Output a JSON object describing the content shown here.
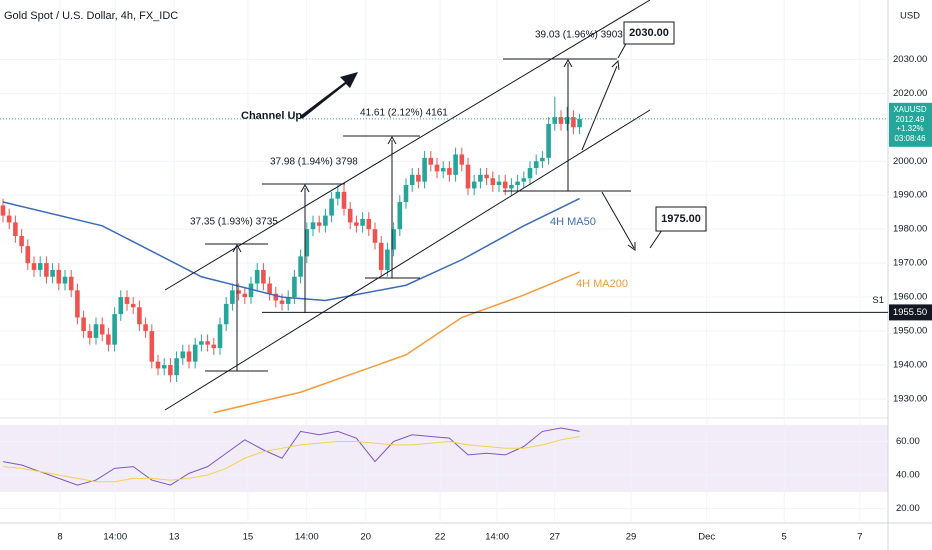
{
  "chart_data": {
    "type": "candlestick",
    "title": "Gold Spot / U.S. Dollar, 4h, FX_IDC",
    "currency": "USD",
    "colors": {
      "up": "#26a69a",
      "down": "#ef5350"
    },
    "ylim": [
      1925,
      2046
    ],
    "yticks": [
      {
        "value": 2030,
        "label": "2030.00"
      },
      {
        "value": 2020,
        "label": "2020.00"
      },
      {
        "value": 2000,
        "label": "2000.00"
      },
      {
        "value": 1990,
        "label": "1990.00"
      },
      {
        "value": 1980,
        "label": "1980.00"
      },
      {
        "value": 1970,
        "label": "1970.00"
      },
      {
        "value": 1960,
        "label": "1960.00"
      },
      {
        "value": 1950,
        "label": "1950.00"
      },
      {
        "value": 1940,
        "label": "1940.00"
      },
      {
        "value": 1930,
        "label": "1930.00"
      }
    ],
    "xticks": [
      {
        "value": 9.2,
        "label": "8"
      },
      {
        "value": 18.1,
        "label": "14:00"
      },
      {
        "value": 27.6,
        "label": "13"
      },
      {
        "value": 39.5,
        "label": "15"
      },
      {
        "value": 49,
        "label": "14:00"
      },
      {
        "value": 58.5,
        "label": "20"
      },
      {
        "value": 70.5,
        "label": "22"
      },
      {
        "value": 79.7,
        "label": "14:00"
      },
      {
        "value": 89,
        "label": "27"
      },
      {
        "value": 101.3,
        "label": "29"
      },
      {
        "value": 113.5,
        "label": "Dec"
      },
      {
        "value": 126,
        "label": "5"
      },
      {
        "value": 138.2,
        "label": "7"
      }
    ],
    "open": [
      1987,
      1984,
      1982,
      1978,
      1975,
      1970,
      1968,
      1970,
      1966,
      1968,
      1964,
      1966,
      1962,
      1954,
      1950,
      1948,
      1952,
      1949,
      1946,
      1955,
      1960,
      1958,
      1957,
      1952,
      1950,
      1941,
      1939,
      1940,
      1937,
      1942,
      1944,
      1941,
      1946,
      1947,
      1946,
      1945,
      1952,
      1958,
      1962,
      1961,
      1960,
      1964,
      1968,
      1964,
      1961,
      1959,
      1958,
      1960,
      1966,
      1972,
      1980,
      1982,
      1981,
      1984,
      1989,
      1991,
      1986,
      1982,
      1981,
      1983,
      1980,
      1976,
      1968,
      1974,
      1980,
      1988,
      1993,
      1996,
      1994,
      2001,
      1999,
      1997,
      1998,
      1996,
      2002,
      1999,
      1992,
      1994,
      1996,
      1995,
      1993,
      1994,
      1992,
      1993,
      1994,
      1995,
      1998,
      2000,
      2001,
      2011,
      2013,
      2011,
      2013,
      2010
    ],
    "high": [
      1989,
      1986,
      1984,
      1980,
      1977,
      1972,
      1972,
      1972,
      1970,
      1970,
      1968,
      1968,
      1964,
      1956,
      1952,
      1954,
      1954,
      1951,
      1957,
      1962,
      1962,
      1960,
      1959,
      1954,
      1952,
      1943,
      1942,
      1942,
      1944,
      1946,
      1946,
      1948,
      1949,
      1949,
      1948,
      1954,
      1960,
      1964,
      1964,
      1963,
      1966,
      1970,
      1970,
      1966,
      1963,
      1961,
      1962,
      1968,
      1974,
      1982,
      1984,
      1984,
      1986,
      1991,
      1993,
      1993,
      1988,
      1984,
      1985,
      1985,
      1982,
      1978,
      1976,
      1982,
      1990,
      1995,
      1998,
      1998,
      2003,
      2003,
      2001,
      2000,
      2000,
      2004,
      2004,
      2001,
      1996,
      1998,
      1998,
      1997,
      1996,
      1996,
      1995,
      1996,
      1997,
      2000,
      2002,
      2003,
      2013,
      2019,
      2015,
      2016,
      2015,
      2014
    ],
    "low": [
      1982,
      1980,
      1976,
      1973,
      1968,
      1966,
      1966,
      1964,
      1964,
      1962,
      1962,
      1960,
      1952,
      1948,
      1946,
      1946,
      1947,
      1944,
      1944,
      1953,
      1956,
      1955,
      1950,
      1948,
      1939,
      1937,
      1937,
      1935,
      1935,
      1940,
      1939,
      1939,
      1944,
      1944,
      1943,
      1943,
      1950,
      1956,
      1959,
      1958,
      1958,
      1962,
      1962,
      1959,
      1957,
      1956,
      1956,
      1958,
      1964,
      1970,
      1978,
      1979,
      1979,
      1982,
      1987,
      1984,
      1980,
      1979,
      1979,
      1978,
      1974,
      1966,
      1966,
      1972,
      1978,
      1986,
      1991,
      1992,
      1992,
      1997,
      1995,
      1995,
      1994,
      1994,
      1997,
      1990,
      1990,
      1992,
      1993,
      1991,
      1991,
      1990,
      1990,
      1991,
      1992,
      1993,
      1996,
      1998,
      1999,
      2009,
      2009,
      2009,
      2008,
      2008
    ],
    "close": [
      1984,
      1982,
      1978,
      1975,
      1970,
      1968,
      1970,
      1966,
      1968,
      1964,
      1966,
      1962,
      1954,
      1950,
      1948,
      1952,
      1949,
      1946,
      1955,
      1960,
      1958,
      1957,
      1952,
      1950,
      1941,
      1939,
      1940,
      1937,
      1942,
      1944,
      1941,
      1946,
      1947,
      1946,
      1945,
      1952,
      1958,
      1962,
      1961,
      1960,
      1964,
      1968,
      1964,
      1961,
      1959,
      1958,
      1960,
      1966,
      1972,
      1980,
      1982,
      1981,
      1984,
      1989,
      1991,
      1986,
      1982,
      1981,
      1983,
      1980,
      1976,
      1968,
      1974,
      1980,
      1988,
      1993,
      1996,
      1994,
      2001,
      1999,
      1997,
      1998,
      1996,
      2002,
      1999,
      1992,
      1994,
      1996,
      1995,
      1993,
      1994,
      1992,
      1993,
      1994,
      1995,
      1998,
      2000,
      2001,
      2011,
      2013,
      2011,
      2013,
      2010,
      2012.49
    ],
    "symbol": "XAUUSD",
    "change": "+1.32%",
    "countdown": "03:08:46",
    "series": [
      {
        "name": "4H MA50",
        "color": "#3c6bb8",
        "x": [
          0,
          16,
          32,
          45,
          52,
          65,
          74,
          84,
          93
        ],
        "values": [
          1988,
          1981,
          1966,
          1960,
          1959,
          1963.5,
          1971,
          1981,
          1989
        ]
      },
      {
        "name": "4H MA200",
        "color": "#f59a3a",
        "x": [
          34,
          48,
          65,
          74,
          84,
          93
        ],
        "values": [
          1926,
          1932,
          1943,
          1954,
          1960.6,
          1967.4
        ]
      }
    ],
    "support": {
      "name": "S1",
      "value": 1955.5,
      "label": "1955.50"
    },
    "annotations": {
      "channel": "Channel Up",
      "measures": [
        "37.35 (1.93%) 3735",
        "37.98 (1.94%) 3798",
        "41.61 (2.12%) 4161",
        "39.03 (1.96%) 3903"
      ],
      "targets": [
        "2030.00",
        "1975.00"
      ]
    },
    "rsi": {
      "ylim": [
        12,
        74
      ],
      "yticks": [
        {
          "value": 60,
          "label": "60.00"
        },
        {
          "value": 40,
          "label": "40.00"
        },
        {
          "value": 20,
          "label": "20.00"
        }
      ],
      "x": [
        0,
        3,
        6,
        9,
        12,
        15,
        18,
        21,
        24,
        27,
        30,
        33,
        36,
        39,
        42,
        45,
        48,
        51,
        54,
        57,
        60,
        63,
        66,
        69,
        72,
        75,
        78,
        81,
        84,
        87,
        90,
        93
      ],
      "series": [
        {
          "color": "#7e57c2",
          "values": [
            48,
            46,
            42,
            38,
            34,
            37,
            44,
            45,
            37,
            34,
            41,
            45,
            53,
            61,
            55,
            50,
            66,
            64,
            66,
            62,
            48,
            60,
            64,
            63,
            62,
            52,
            53,
            52,
            57,
            66,
            68,
            66
          ]
        },
        {
          "color": "#f2d250",
          "values": [
            45,
            44,
            42,
            40,
            38,
            36,
            36,
            38,
            38,
            37,
            38,
            40,
            44,
            50,
            54,
            56,
            58,
            59,
            60,
            60,
            59,
            58,
            58,
            59,
            60,
            58,
            57,
            56,
            56,
            58,
            61,
            63
          ]
        }
      ]
    }
  }
}
